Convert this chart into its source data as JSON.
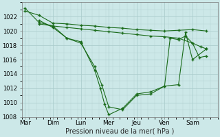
{
  "background_color": "#cce8e8",
  "grid_color": "#aacccc",
  "line_color": "#1a6b1a",
  "xlabel": "Pression niveau de la mer( hPa )",
  "ylim": [
    1008,
    1024
  ],
  "yticks": [
    1008,
    1010,
    1012,
    1014,
    1016,
    1018,
    1020,
    1022
  ],
  "day_labels": [
    "Mar",
    "Dim",
    "Lun",
    "Mer",
    "Jeu",
    "Ven",
    "Sam"
  ],
  "day_positions": [
    0,
    1,
    2,
    3,
    4,
    5,
    6
  ],
  "series": [
    {
      "x": [
        0.0,
        0.5,
        1.0,
        1.5,
        2.0,
        2.5,
        3.0,
        3.5,
        4.0,
        4.5,
        5.0,
        5.5,
        6.0,
        6.5
      ],
      "y": [
        1022.8,
        1022.2,
        1021.1,
        1021.0,
        1020.8,
        1020.7,
        1020.5,
        1020.4,
        1020.2,
        1020.1,
        1020.0,
        1020.1,
        1020.2,
        1020.0
      ]
    },
    {
      "x": [
        0.5,
        1.0,
        1.5,
        2.0,
        2.5,
        3.0,
        3.5,
        4.0,
        4.5,
        5.0,
        5.5,
        6.0,
        6.3,
        6.5
      ],
      "y": [
        1021.0,
        1020.7,
        1020.5,
        1020.3,
        1020.1,
        1019.9,
        1019.7,
        1019.5,
        1019.3,
        1019.2,
        1019.0,
        1018.3,
        1017.8,
        1017.5
      ]
    },
    {
      "x": [
        0.0,
        0.5,
        1.0,
        1.5,
        2.0,
        2.5,
        2.75,
        3.0,
        3.5,
        4.0,
        4.5,
        5.0,
        5.2,
        5.5,
        5.75,
        6.0,
        6.25,
        6.5
      ],
      "y": [
        1023.2,
        1021.2,
        1020.7,
        1019.0,
        1018.3,
        1015.0,
        1012.5,
        1009.4,
        1009.0,
        1011.0,
        1011.2,
        1012.3,
        1019.0,
        1018.8,
        1019.3,
        1018.3,
        1016.3,
        1016.5
      ]
    },
    {
      "x": [
        0.5,
        1.0,
        1.5,
        2.0,
        2.5,
        2.7,
        2.85,
        3.0,
        3.5,
        4.0,
        4.5,
        5.0,
        5.5,
        5.75,
        6.0,
        6.5
      ],
      "y": [
        1021.5,
        1020.5,
        1019.0,
        1018.5,
        1014.5,
        1012.0,
        1009.8,
        1008.3,
        1009.2,
        1011.2,
        1011.5,
        1012.3,
        1012.5,
        1019.8,
        1016.0,
        1017.5
      ]
    }
  ]
}
